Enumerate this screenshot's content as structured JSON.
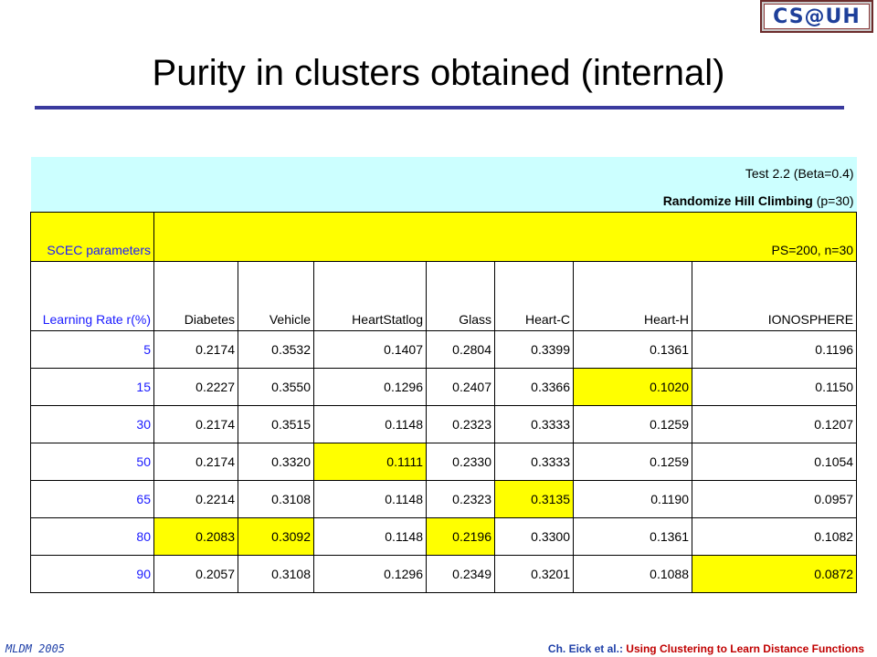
{
  "logo": {
    "text": "CS@UH"
  },
  "title": "Purity in clusters obtained (internal)",
  "table": {
    "header1": "Test 2.2  (Beta=0.4)",
    "header2_bold": "Randomize Hill Climbing",
    "header2_rest": " (p=30)",
    "scec_label": "SCEC parameters",
    "scec_value": "PS=200, n=30",
    "columns": [
      "Learning Rate r(%)",
      "Diabetes",
      "Vehicle",
      "HeartStatlog",
      "Glass",
      "Heart-C",
      "Heart-H",
      "IONOSPHERE"
    ],
    "rows": [
      {
        "rate": "5",
        "values": [
          "0.2174",
          "0.3532",
          "0.1407",
          "0.2804",
          "0.3399",
          "0.1361",
          "0.1196"
        ]
      },
      {
        "rate": "15",
        "values": [
          "0.2227",
          "0.3550",
          "0.1296",
          "0.2407",
          "0.3366",
          "0.1020",
          "0.1150"
        ]
      },
      {
        "rate": "30",
        "values": [
          "0.2174",
          "0.3515",
          "0.1148",
          "0.2323",
          "0.3333",
          "0.1259",
          "0.1207"
        ]
      },
      {
        "rate": "50",
        "values": [
          "0.2174",
          "0.3320",
          "0.1111",
          "0.2330",
          "0.3333",
          "0.1259",
          "0.1054"
        ]
      },
      {
        "rate": "65",
        "values": [
          "0.2214",
          "0.3108",
          "0.1148",
          "0.2323",
          "0.3135",
          "0.1190",
          "0.0957"
        ]
      },
      {
        "rate": "80",
        "values": [
          "0.2083",
          "0.3092",
          "0.1148",
          "0.2196",
          "0.3300",
          "0.1361",
          "0.1082"
        ]
      },
      {
        "rate": "90",
        "values": [
          "0.2057",
          "0.3108",
          "0.1296",
          "0.2349",
          "0.3201",
          "0.1088",
          "0.0872"
        ]
      }
    ],
    "highlights": [
      [
        1,
        5
      ],
      [
        3,
        2
      ],
      [
        4,
        4
      ],
      [
        5,
        0
      ],
      [
        5,
        1
      ],
      [
        5,
        3
      ],
      [
        6,
        6
      ]
    ],
    "highlight_color": "#ffff00",
    "header_color": "#ccffff",
    "rate_color": "#1a1aff"
  },
  "footer": {
    "left": "MLDM 2005",
    "author": "Ch. Eick et al.",
    "sep": ": ",
    "topic": "Using Clustering to Learn Distance Functions"
  }
}
